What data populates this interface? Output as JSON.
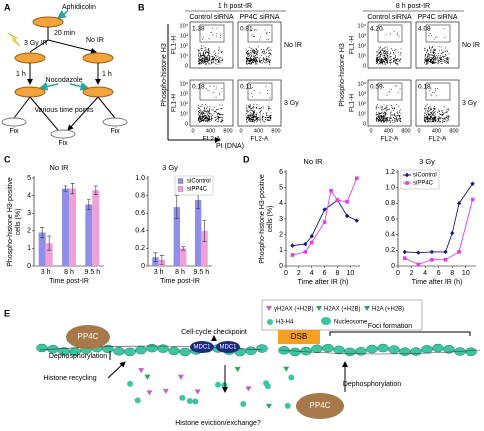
{
  "panels": {
    "A": {
      "label": "A",
      "aphidicolin": "Aphidicolin",
      "time": "20 min",
      "ir": "3 Gy IR",
      "no_ir": "No IR",
      "hours": [
        "1 h",
        "1 h"
      ],
      "nocodazole": "Nocodazole",
      "time_points": "Various time points",
      "fix": [
        "Fix",
        "Fix",
        "Fix"
      ]
    },
    "B": {
      "label": "B",
      "y_axis": "FL1-H",
      "x_axis": "FL2-A",
      "y_ticks": [
        "10⁴",
        "10³",
        "10²",
        "10¹",
        "0"
      ],
      "x_ticks": [
        "0",
        "400",
        "800"
      ],
      "groups": [
        {
          "title": "1 h post-IR",
          "columns": [
            "Control siRNA",
            "PP4C siRNA"
          ],
          "rows": [
            "No IR",
            "3 Gy"
          ],
          "percentages": [
            [
              "1.38",
              "0.81"
            ],
            [
              "0.18",
              "0.11"
            ]
          ],
          "y_title": "Phospho-histone H3",
          "x_title": "PI (DNA)"
        },
        {
          "title": "8 h post-IR",
          "columns": [
            "Control siRNA",
            "PP4C siRNA"
          ],
          "rows": [
            "No IR",
            "3 Gy"
          ],
          "percentages": [
            [
              "4.20",
              "4.08"
            ],
            [
              "0.59",
              "0.18"
            ]
          ],
          "y_title": "Phospho-histone H3"
        }
      ]
    },
    "C": {
      "label": "C"
    },
    "D": {
      "label": "D"
    },
    "E": {
      "label": "E",
      "pp4c_top": "PP4C",
      "dephos_top": "Dephosphorylation",
      "checkpoint": "Cell-cycle checkpoint",
      "mdc1": [
        "MDC1",
        "MDC1"
      ],
      "dsb": "DSB",
      "foci": "Foci formation",
      "recycling": "Histone recycling",
      "eviction": "Histone eviction/exchange?",
      "pp4c_bottom": "PP4C",
      "dephos_bottom": "Dephosphorylation",
      "legend": [
        "γH2AX (+H2B)",
        "H2AX (+H2B)",
        "H2A (+H2B)",
        "H3-H4",
        "Nucleosome"
      ]
    }
  },
  "chart_data": [
    {
      "type": "bar",
      "title": "No IR",
      "categories": [
        "3 h",
        "8 h",
        "9.5 h"
      ],
      "xlabel": "Time post-IR",
      "ylabel": [
        "Phospho-histone H3-positive",
        "cells (%)"
      ],
      "ylim": [
        0,
        5
      ],
      "yticks": [
        0,
        1,
        2,
        3,
        4,
        5
      ],
      "series": [
        {
          "name": "siControl",
          "color": "#8f8fe8",
          "values": [
            1.9,
            4.4,
            3.5
          ],
          "errors": [
            0.3,
            0.15,
            0.3
          ]
        },
        {
          "name": "siPP4C",
          "color": "#f0a0d8",
          "values": [
            1.3,
            4.4,
            4.3
          ],
          "errors": [
            0.4,
            0.3,
            0.25
          ]
        }
      ]
    },
    {
      "type": "bar",
      "title": "3 Gy",
      "categories": [
        "3 h",
        "8 h",
        "9.5 h"
      ],
      "xlabel": "Time post-IR",
      "ylim": [
        0,
        1
      ],
      "yticks": [
        0,
        0.2,
        0.4,
        0.6,
        0.8,
        {
          "value": 1,
          "label": "1.0"
        }
      ],
      "legend": "upper right",
      "series": [
        {
          "name": "siControl",
          "color": "#8f8fe8",
          "values": [
            0.1,
            0.67,
            0.75
          ],
          "errors": [
            0.05,
            0.13,
            0.1
          ]
        },
        {
          "name": "siPP4C",
          "color": "#f0a0d8",
          "values": [
            0.07,
            0.2,
            0.4
          ],
          "errors": [
            0.05,
            0.02,
            0.12
          ]
        }
      ]
    },
    {
      "type": "line",
      "title": "No IR",
      "xlabel": "Time after IR (h)",
      "ylabel": [
        "Phospho-histone H3-positive",
        "cells (%)"
      ],
      "xlim": [
        0,
        11.5
      ],
      "xticks": [
        0,
        2,
        4,
        6,
        8,
        10
      ],
      "ylim": [
        0,
        6
      ],
      "yticks": [
        0,
        1,
        2,
        3,
        4,
        5,
        6
      ],
      "series": [
        {
          "name": "siControl",
          "color": "#1a1a80",
          "marker": "diamond",
          "x": [
            1,
            3,
            4,
            6,
            8,
            9.5,
            11
          ],
          "values": [
            1.3,
            1.4,
            1.9,
            3.6,
            4.2,
            3.2,
            2.9
          ]
        },
        {
          "name": "siPP4C",
          "color": "#e040e0",
          "marker": "square",
          "x": [
            1,
            3,
            4,
            6,
            7,
            8,
            9.5,
            11
          ],
          "values": [
            0.7,
            0.9,
            1.5,
            2.8,
            4.8,
            4.2,
            4.1,
            5.6
          ]
        }
      ]
    },
    {
      "type": "line",
      "title": "3 Gy",
      "xlabel": "Time after IR (h)",
      "xlim": [
        0,
        11.5
      ],
      "xticks": [
        0,
        2,
        4,
        6,
        8,
        10
      ],
      "ylim": [
        0,
        1.2
      ],
      "yticks": [
        0,
        0.2,
        0.4,
        0.6,
        0.8,
        {
          "value": 1,
          "label": "1.0"
        },
        1.2
      ],
      "legend": "upper left",
      "series": [
        {
          "name": "siControl",
          "color": "#1a1a80",
          "marker": "diamond",
          "x": [
            1,
            3,
            5,
            7,
            8,
            9,
            11
          ],
          "values": [
            0.18,
            0.17,
            0.18,
            0.18,
            0.42,
            0.8,
            1.05
          ]
        },
        {
          "name": "siPP4C",
          "color": "#e040e0",
          "marker": "square",
          "x": [
            1,
            3,
            5,
            7,
            9,
            11
          ],
          "values": [
            0.1,
            0.02,
            0.08,
            0.08,
            0.18,
            0.85
          ]
        }
      ]
    }
  ]
}
